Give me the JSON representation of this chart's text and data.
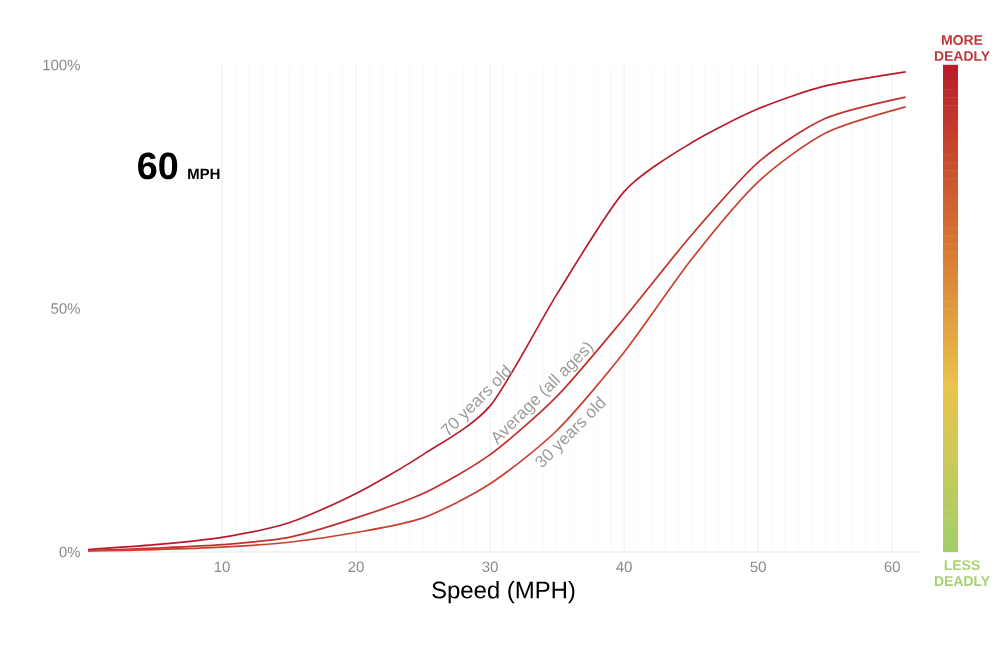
{
  "chart_data": {
    "type": "line",
    "xlabel": "Speed (MPH)",
    "x": [
      0,
      5,
      10,
      15,
      20,
      25,
      30,
      35,
      40,
      45,
      50,
      55,
      61
    ],
    "series": [
      {
        "name": "70 years old",
        "color": "#b71c2c",
        "values": [
          0.5,
          1.5,
          3,
          6,
          12,
          20,
          30,
          53,
          74,
          84,
          91,
          95.7,
          98.6
        ]
      },
      {
        "name": "Average (all ages)",
        "color": "#c0302c",
        "values": [
          0.3,
          0.8,
          1.5,
          3,
          7,
          12,
          20,
          32,
          48,
          65,
          80,
          89,
          93.4
        ]
      },
      {
        "name": "30 years old",
        "color": "#c9412e",
        "values": [
          0.2,
          0.5,
          1,
          2,
          4,
          7,
          14,
          25,
          41,
          60,
          76,
          86,
          91.4
        ]
      }
    ],
    "xlim": [
      0,
      62
    ],
    "ylim": [
      0,
      100
    ],
    "xticks": [
      10,
      20,
      30,
      40,
      50,
      60
    ],
    "yticks": [
      {
        "value": 0,
        "label": "0%"
      },
      {
        "value": 50,
        "label": "50%"
      },
      {
        "value": 100,
        "label": "100%"
      }
    ],
    "grid": "x",
    "legend": false,
    "marker": "none",
    "line_style": "solid",
    "annotations": [
      "60",
      "MPH",
      "MORE DEADLY",
      "LESS DEADLY"
    ]
  }
}
